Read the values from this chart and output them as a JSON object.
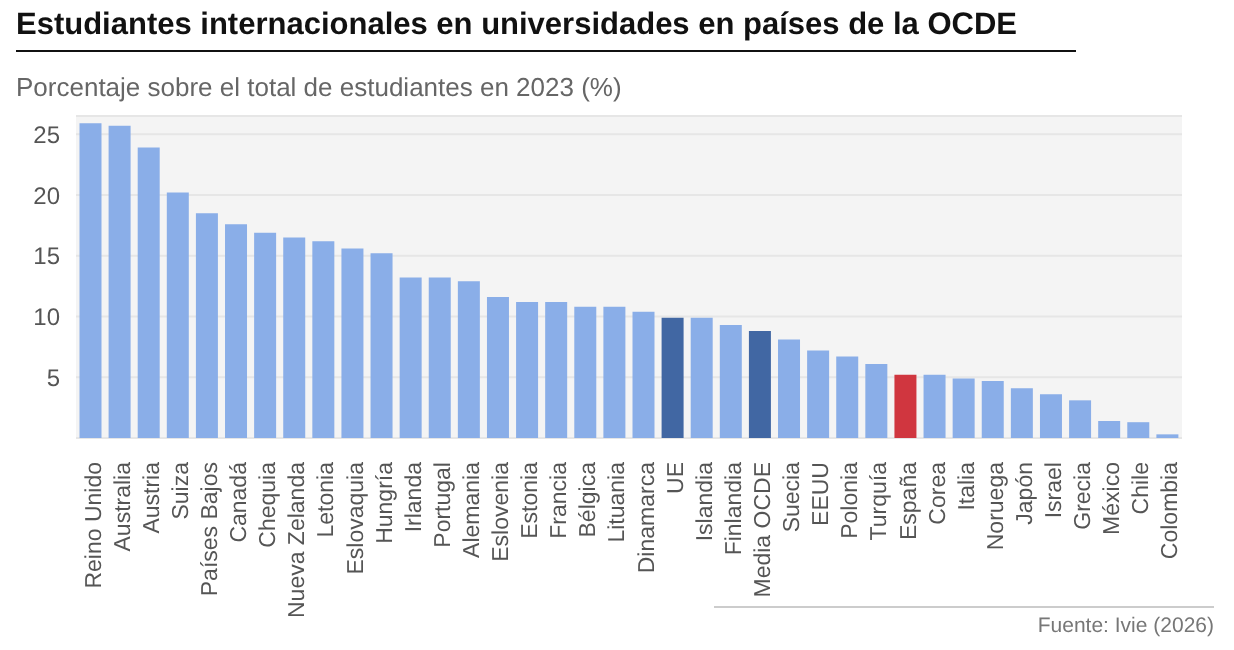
{
  "chart_data": {
    "type": "bar",
    "title": "Estudiantes internacionales en universidades en países de la OCDE",
    "subtitle": "Porcentaje sobre el total de estudiantes en 2023 (%)",
    "categories": [
      "Reino Unido",
      "Australia",
      "Austria",
      "Suiza",
      "Países Bajos",
      "Canadá",
      "Chequia",
      "Nueva Zelanda",
      "Letonia",
      "Eslovaquia",
      "Hungría",
      "Irlanda",
      "Portugal",
      "Alemania",
      "Eslovenia",
      "Estonia",
      "Francia",
      "Bélgica",
      "Lituania",
      "Dinamarca",
      "UE",
      "Islandia",
      "Finlandia",
      "Media OCDE",
      "Suecia",
      "EEUU",
      "Polonia",
      "Turquía",
      "España",
      "Corea",
      "Italia",
      "Noruega",
      "Japón",
      "Israel",
      "Grecia",
      "México",
      "Chile",
      "Colombia"
    ],
    "values": [
      25.9,
      25.7,
      23.9,
      20.2,
      18.5,
      17.6,
      16.9,
      16.5,
      16.2,
      15.6,
      15.2,
      13.2,
      13.2,
      12.9,
      11.6,
      11.2,
      11.2,
      10.8,
      10.8,
      10.4,
      9.9,
      9.9,
      9.3,
      8.8,
      8.1,
      7.2,
      6.7,
      6.1,
      5.2,
      5.2,
      4.9,
      4.7,
      4.1,
      3.6,
      3.1,
      1.4,
      1.3,
      0.3
    ],
    "colors": [
      "#8aaee8",
      "#8aaee8",
      "#8aaee8",
      "#8aaee8",
      "#8aaee8",
      "#8aaee8",
      "#8aaee8",
      "#8aaee8",
      "#8aaee8",
      "#8aaee8",
      "#8aaee8",
      "#8aaee8",
      "#8aaee8",
      "#8aaee8",
      "#8aaee8",
      "#8aaee8",
      "#8aaee8",
      "#8aaee8",
      "#8aaee8",
      "#8aaee8",
      "#4167a3",
      "#8aaee8",
      "#8aaee8",
      "#4167a3",
      "#8aaee8",
      "#8aaee8",
      "#8aaee8",
      "#8aaee8",
      "#d0363f",
      "#8aaee8",
      "#8aaee8",
      "#8aaee8",
      "#8aaee8",
      "#8aaee8",
      "#8aaee8",
      "#8aaee8",
      "#8aaee8",
      "#8aaee8"
    ],
    "ylim": [
      0,
      26.5
    ],
    "yticks": [
      5,
      10,
      15,
      20,
      25
    ],
    "grid": "y",
    "annotations": [
      "Fuente: Ivie (2026)"
    ]
  }
}
